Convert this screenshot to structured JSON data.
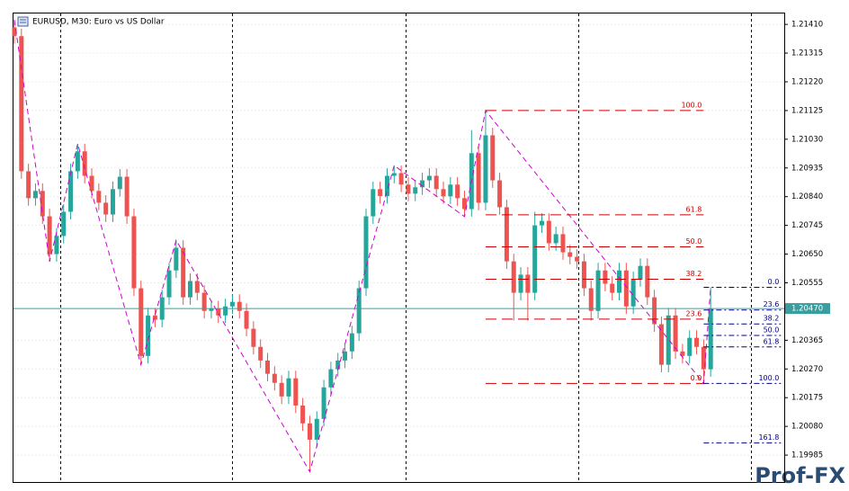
{
  "chart_data": {
    "type": "candlestick",
    "title": "EURUSD, M30:  Euro vs US Dollar",
    "ylim": [
      1.19896,
      1.21449
    ],
    "yticks": [
      {
        "value": 1.2141,
        "label": "1.21410"
      },
      1.21315,
      {
        "value": 1.2122,
        "label": "1.21220"
      },
      1.21125,
      {
        "value": 1.2103,
        "label": "1.21030"
      },
      1.20935,
      {
        "value": 1.2084,
        "label": "1.20840"
      },
      1.20745,
      {
        "value": 1.2065,
        "label": "1.20650"
      },
      1.20555,
      1.20365,
      {
        "value": 1.2027,
        "label": "1.20270"
      },
      1.20175,
      {
        "value": 1.2008,
        "label": "1.20080"
      },
      1.19985
    ],
    "grid": true,
    "up_color": "#26a69a",
    "down_color": "#ef5350",
    "open": [
      1.214,
      1.21371,
      1.20924,
      1.20835,
      1.20859,
      1.20775,
      1.2065,
      1.2071,
      1.2079,
      1.20924,
      1.2099,
      1.20909,
      1.20859,
      1.2082,
      1.20781,
      1.20865,
      1.20906,
      1.20775,
      1.20537,
      1.20313,
      1.20447,
      1.20433,
      1.20507,
      1.20596,
      1.20671,
      1.20507,
      1.20561,
      1.20522,
      1.20462,
      1.2047,
      1.20447,
      1.20477,
      1.20492,
      1.20462,
      1.20403,
      1.20343,
      1.20298,
      1.20254,
      1.20224,
      1.20179,
      1.20239,
      1.20149,
      1.2009,
      1.20036,
      1.20105,
      1.20209,
      1.20269,
      1.20298,
      1.20328,
      1.20388,
      1.20537,
      1.20775,
      1.20865,
      1.20842,
      1.20909,
      1.20918,
      1.2088,
      1.2085,
      1.20871,
      1.20894,
      1.20909,
      1.20865,
      1.20841,
      1.2088,
      1.20835,
      1.20799,
      1.20984,
      1.2082,
      1.21043,
      1.20894,
      1.20805,
      1.20626,
      1.20522,
      1.20582,
      1.20522,
      1.20745,
      1.2076,
      1.20686,
      1.20716,
      1.20656,
      1.20641,
      1.20626,
      1.20537,
      1.20462,
      1.20596,
      1.20552,
      1.20522,
      1.20596,
      1.20477,
      1.20567,
      1.20611,
      1.20507,
      1.20418,
      1.20284,
      1.20447,
      1.20328,
      1.20313,
      1.20373,
      1.20343,
      1.20269
    ],
    "high": [
      1.21425,
      1.21396,
      1.20949,
      1.20884,
      1.20884,
      1.208,
      1.20735,
      1.20815,
      1.20949,
      1.21015,
      1.21015,
      1.20934,
      1.20884,
      1.20845,
      1.2089,
      1.20931,
      1.20931,
      1.208,
      1.20562,
      1.20472,
      1.20472,
      1.20532,
      1.20621,
      1.20696,
      1.20696,
      1.20586,
      1.20586,
      1.20547,
      1.20495,
      1.20495,
      1.20502,
      1.20517,
      1.20517,
      1.20487,
      1.20428,
      1.20368,
      1.20323,
      1.20279,
      1.20249,
      1.20264,
      1.20264,
      1.20174,
      1.20115,
      1.2013,
      1.20234,
      1.20294,
      1.20323,
      1.20353,
      1.20413,
      1.20562,
      1.208,
      1.2089,
      1.2089,
      1.20934,
      1.20943,
      1.20943,
      1.20905,
      1.20896,
      1.20919,
      1.20934,
      1.20934,
      1.2089,
      1.20905,
      1.20905,
      1.2086,
      1.2106,
      1.21009,
      1.21125,
      1.21068,
      1.20919,
      1.2083,
      1.20651,
      1.20607,
      1.20607,
      1.2079,
      1.20785,
      1.20785,
      1.20741,
      1.20741,
      1.20681,
      1.20666,
      1.20651,
      1.20562,
      1.20621,
      1.20621,
      1.20577,
      1.20621,
      1.20621,
      1.20592,
      1.20636,
      1.20636,
      1.20532,
      1.20443,
      1.20472,
      1.20472,
      1.20353,
      1.20398,
      1.20398,
      1.20368,
      1.2054
    ],
    "low": [
      1.21346,
      1.20899,
      1.2081,
      1.2081,
      1.2075,
      1.20625,
      1.20625,
      1.20685,
      1.20765,
      1.20899,
      1.20884,
      1.20834,
      1.20795,
      1.20756,
      1.20756,
      1.2084,
      1.2075,
      1.20512,
      1.20284,
      1.20288,
      1.20408,
      1.20408,
      1.20482,
      1.20571,
      1.20482,
      1.20482,
      1.20497,
      1.20437,
      1.20437,
      1.20422,
      1.20422,
      1.20452,
      1.20437,
      1.20378,
      1.20318,
      1.20273,
      1.20229,
      1.20199,
      1.20154,
      1.20154,
      1.20124,
      1.20065,
      1.1993,
      1.20011,
      1.2008,
      1.20184,
      1.20244,
      1.20273,
      1.20303,
      1.20363,
      1.20512,
      1.2075,
      1.20817,
      1.20817,
      1.20884,
      1.20855,
      1.20825,
      1.20825,
      1.20846,
      1.20869,
      1.2084,
      1.20816,
      1.20816,
      1.2081,
      1.20774,
      1.20774,
      1.20795,
      1.20795,
      1.20869,
      1.2078,
      1.20601,
      1.2043,
      1.20497,
      1.2043,
      1.20497,
      1.2072,
      1.20661,
      1.20661,
      1.20631,
      1.20616,
      1.20601,
      1.20512,
      1.2043,
      1.20437,
      1.20527,
      1.20497,
      1.20497,
      1.20452,
      1.20452,
      1.20542,
      1.20482,
      1.20393,
      1.20259,
      1.20259,
      1.20303,
      1.20288,
      1.20288,
      1.20318,
      1.20222,
      1.20244
    ],
    "close": [
      1.21371,
      1.20924,
      1.20835,
      1.20859,
      1.20775,
      1.2065,
      1.2071,
      1.2079,
      1.20924,
      1.2099,
      1.20909,
      1.20859,
      1.2082,
      1.20781,
      1.20865,
      1.20906,
      1.20775,
      1.20537,
      1.20313,
      1.20447,
      1.20433,
      1.20507,
      1.20596,
      1.20671,
      1.20507,
      1.20561,
      1.20522,
      1.20462,
      1.2047,
      1.20447,
      1.20477,
      1.20492,
      1.20462,
      1.20403,
      1.20343,
      1.20298,
      1.20254,
      1.20224,
      1.20179,
      1.20239,
      1.20149,
      1.2009,
      1.20036,
      1.20105,
      1.20209,
      1.20269,
      1.20298,
      1.20328,
      1.20388,
      1.20537,
      1.20775,
      1.20865,
      1.20842,
      1.20909,
      1.20918,
      1.2088,
      1.2085,
      1.20871,
      1.20894,
      1.20909,
      1.20865,
      1.20841,
      1.2088,
      1.20835,
      1.20799,
      1.20984,
      1.2082,
      1.21043,
      1.20894,
      1.20805,
      1.20626,
      1.20522,
      1.20582,
      1.20522,
      1.20745,
      1.2076,
      1.20686,
      1.20716,
      1.20656,
      1.20641,
      1.20626,
      1.20537,
      1.20462,
      1.20596,
      1.20552,
      1.20522,
      1.20596,
      1.20477,
      1.20567,
      1.20611,
      1.20507,
      1.20418,
      1.20284,
      1.20447,
      1.20328,
      1.20313,
      1.20373,
      1.20343,
      1.20269,
      1.2047
    ],
    "current_price": {
      "value": 1.2047,
      "label": "1.20470",
      "color": "#3a9e9e"
    },
    "zigzag": {
      "color": "#d000d0",
      "x": [
        0,
        5,
        9,
        18,
        23,
        42,
        54,
        64,
        67,
        98,
        99
      ],
      "values": [
        1.21425,
        1.20625,
        1.21015,
        1.20284,
        1.20696,
        1.1993,
        1.20943,
        1.20774,
        1.21125,
        1.20222,
        1.2054
      ]
    },
    "fibonacci": [
      {
        "color": "#cc0000",
        "x": [
          67,
          98
        ],
        "levels": [
          {
            "value": 1.21125,
            "label": "100.0"
          },
          {
            "value": 1.2078,
            "label": "61.8"
          },
          {
            "value": 1.20674,
            "label": "50.0"
          },
          {
            "value": 1.20567,
            "label": "38.2"
          },
          {
            "value": 1.20435,
            "label": "23.6"
          },
          {
            "value": 1.20222,
            "label": "0.0"
          }
        ]
      },
      {
        "color": "#00008b",
        "x": [
          98,
          109
        ],
        "levels": [
          {
            "value": 1.2054,
            "label": "0.0"
          },
          {
            "value": 1.20465,
            "label": "23.6"
          },
          {
            "value": 1.20419,
            "label": "38.2"
          },
          {
            "value": 1.20381,
            "label": "50.0"
          },
          {
            "value": 1.20343,
            "label": "61.8"
          },
          {
            "value": 1.20222,
            "label": "100.0"
          },
          {
            "value": 1.20025,
            "label": "161.8"
          }
        ]
      }
    ],
    "watermark": "Prof-FX"
  }
}
